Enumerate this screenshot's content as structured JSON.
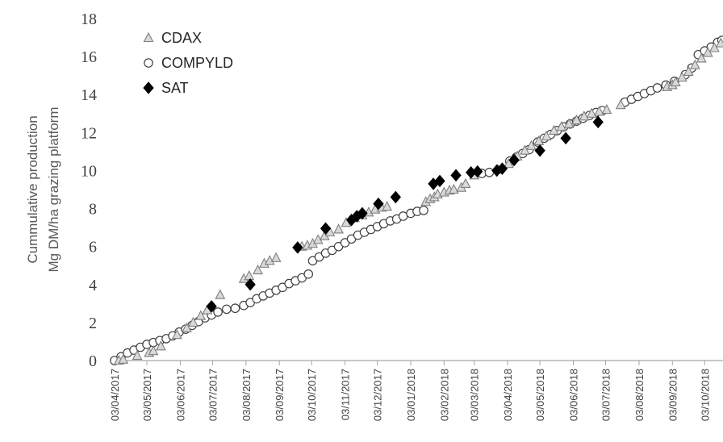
{
  "chart_data": {
    "type": "scatter",
    "ylabel_lines": [
      "Cummulative production",
      "Mg DM/ha grazing platform"
    ],
    "ylim": [
      0,
      18
    ],
    "yticks": [
      0,
      2,
      4,
      6,
      8,
      10,
      12,
      14,
      16,
      18
    ],
    "xlim": [
      "2017-04-03",
      "2018-10-20"
    ],
    "xtick_values": [
      "2017-04-03",
      "2017-05-03",
      "2017-06-03",
      "2017-07-03",
      "2017-08-03",
      "2017-09-03",
      "2017-10-03",
      "2017-11-03",
      "2017-12-03",
      "2018-01-03",
      "2018-02-03",
      "2018-03-03",
      "2018-04-03",
      "2018-05-03",
      "2018-06-03",
      "2018-07-03",
      "2018-08-03",
      "2018-09-03",
      "2018-10-03"
    ],
    "xtick_labels": [
      "03/04/2017",
      "03/05/2017",
      "03/06/2017",
      "03/07/2017",
      "03/08/2017",
      "03/09/2017",
      "03/10/2017",
      "03/11/2017",
      "03/12/2017",
      "03/01/2018",
      "03/02/2018",
      "03/03/2018",
      "03/04/2018",
      "03/05/2018",
      "03/06/2018",
      "03/07/2018",
      "03/08/2018",
      "03/09/2018",
      "03/10/2018"
    ],
    "grid": false,
    "legend_position": "top-left",
    "series": [
      {
        "name": "CDAX",
        "marker": "triangle",
        "color": "#7f7f7f",
        "points": [
          [
            "2017-04-07",
            0.0
          ],
          [
            "2017-04-11",
            0.05
          ],
          [
            "2017-04-24",
            0.25
          ],
          [
            "2017-05-05",
            0.4
          ],
          [
            "2017-05-09",
            0.5
          ],
          [
            "2017-05-16",
            0.75
          ],
          [
            "2017-05-31",
            1.35
          ],
          [
            "2017-06-09",
            1.7
          ],
          [
            "2017-06-15",
            2.0
          ],
          [
            "2017-06-22",
            2.35
          ],
          [
            "2017-06-28",
            2.65
          ],
          [
            "2017-07-10",
            3.45
          ],
          [
            "2017-08-01",
            4.3
          ],
          [
            "2017-08-06",
            4.45
          ],
          [
            "2017-08-14",
            4.75
          ],
          [
            "2017-08-20",
            5.1
          ],
          [
            "2017-08-25",
            5.25
          ],
          [
            "2017-08-31",
            5.4
          ],
          [
            "2017-09-24",
            6.0
          ],
          [
            "2017-09-29",
            6.05
          ],
          [
            "2017-10-04",
            6.15
          ],
          [
            "2017-10-09",
            6.35
          ],
          [
            "2017-10-15",
            6.55
          ],
          [
            "2017-10-20",
            6.75
          ],
          [
            "2017-10-28",
            6.9
          ],
          [
            "2017-11-04",
            7.25
          ],
          [
            "2017-11-12",
            7.5
          ],
          [
            "2017-11-19",
            7.65
          ],
          [
            "2017-11-25",
            7.8
          ],
          [
            "2017-12-01",
            7.95
          ],
          [
            "2017-12-07",
            8.05
          ],
          [
            "2017-12-12",
            8.1
          ],
          [
            "2018-01-17",
            8.35
          ],
          [
            "2018-01-21",
            8.5
          ],
          [
            "2018-01-25",
            8.6
          ],
          [
            "2018-01-28",
            8.75
          ],
          [
            "2018-02-03",
            8.85
          ],
          [
            "2018-02-08",
            8.95
          ],
          [
            "2018-02-12",
            9.0
          ],
          [
            "2018-02-19",
            9.1
          ],
          [
            "2018-02-23",
            9.3
          ],
          [
            "2018-03-03",
            9.75
          ],
          [
            "2018-03-25",
            10.05
          ],
          [
            "2018-04-04",
            10.35
          ],
          [
            "2018-04-12",
            10.75
          ],
          [
            "2018-04-19",
            11.05
          ],
          [
            "2018-04-25",
            11.3
          ],
          [
            "2018-05-02",
            11.55
          ],
          [
            "2018-05-09",
            11.8
          ],
          [
            "2018-05-16",
            12.1
          ],
          [
            "2018-05-23",
            12.3
          ],
          [
            "2018-05-30",
            12.45
          ],
          [
            "2018-06-06",
            12.65
          ],
          [
            "2018-06-13",
            12.85
          ],
          [
            "2018-06-20",
            13.0
          ],
          [
            "2018-06-27",
            13.1
          ],
          [
            "2018-07-04",
            13.2
          ],
          [
            "2018-07-17",
            13.45
          ],
          [
            "2018-08-29",
            14.4
          ],
          [
            "2018-09-03",
            14.5
          ],
          [
            "2018-09-06",
            14.65
          ],
          [
            "2018-09-12",
            14.9
          ],
          [
            "2018-09-18",
            15.2
          ],
          [
            "2018-09-24",
            15.55
          ],
          [
            "2018-09-30",
            15.9
          ],
          [
            "2018-10-06",
            16.2
          ],
          [
            "2018-10-12",
            16.45
          ],
          [
            "2018-10-18",
            16.7
          ]
        ]
      },
      {
        "name": "COMPYLD",
        "marker": "circle",
        "color": "#404040",
        "points": [
          [
            "2017-04-03",
            0.0
          ],
          [
            "2017-04-09",
            0.2
          ],
          [
            "2017-04-15",
            0.4
          ],
          [
            "2017-04-21",
            0.55
          ],
          [
            "2017-04-27",
            0.7
          ],
          [
            "2017-05-03",
            0.85
          ],
          [
            "2017-05-09",
            0.95
          ],
          [
            "2017-05-15",
            1.05
          ],
          [
            "2017-05-21",
            1.15
          ],
          [
            "2017-05-27",
            1.3
          ],
          [
            "2017-06-02",
            1.5
          ],
          [
            "2017-06-08",
            1.65
          ],
          [
            "2017-06-14",
            1.85
          ],
          [
            "2017-06-20",
            2.05
          ],
          [
            "2017-06-26",
            2.25
          ],
          [
            "2017-07-02",
            2.4
          ],
          [
            "2017-07-08",
            2.55
          ],
          [
            "2017-07-16",
            2.7
          ],
          [
            "2017-07-24",
            2.75
          ],
          [
            "2017-08-01",
            2.9
          ],
          [
            "2017-08-07",
            3.05
          ],
          [
            "2017-08-13",
            3.25
          ],
          [
            "2017-08-19",
            3.4
          ],
          [
            "2017-08-25",
            3.55
          ],
          [
            "2017-08-31",
            3.7
          ],
          [
            "2017-09-06",
            3.85
          ],
          [
            "2017-09-12",
            4.05
          ],
          [
            "2017-09-18",
            4.2
          ],
          [
            "2017-09-24",
            4.35
          ],
          [
            "2017-09-30",
            4.55
          ],
          [
            "2017-10-04",
            5.25
          ],
          [
            "2017-10-10",
            5.45
          ],
          [
            "2017-10-16",
            5.65
          ],
          [
            "2017-10-22",
            5.8
          ],
          [
            "2017-10-28",
            6.0
          ],
          [
            "2017-11-03",
            6.2
          ],
          [
            "2017-11-09",
            6.4
          ],
          [
            "2017-11-15",
            6.6
          ],
          [
            "2017-11-21",
            6.75
          ],
          [
            "2017-11-27",
            6.9
          ],
          [
            "2017-12-03",
            7.05
          ],
          [
            "2017-12-09",
            7.2
          ],
          [
            "2017-12-15",
            7.35
          ],
          [
            "2017-12-21",
            7.45
          ],
          [
            "2017-12-27",
            7.6
          ],
          [
            "2018-01-03",
            7.75
          ],
          [
            "2018-01-09",
            7.85
          ],
          [
            "2018-01-15",
            7.9
          ],
          [
            "2018-03-10",
            9.85
          ],
          [
            "2018-03-17",
            9.9
          ],
          [
            "2018-04-05",
            10.5
          ],
          [
            "2018-04-11",
            10.7
          ],
          [
            "2018-04-17",
            10.9
          ],
          [
            "2018-04-23",
            11.1
          ],
          [
            "2018-05-01",
            11.5
          ],
          [
            "2018-05-07",
            11.7
          ],
          [
            "2018-05-13",
            11.9
          ],
          [
            "2018-05-19",
            12.1
          ],
          [
            "2018-05-25",
            12.3
          ],
          [
            "2018-05-31",
            12.45
          ],
          [
            "2018-06-06",
            12.6
          ],
          [
            "2018-06-12",
            12.75
          ],
          [
            "2018-06-18",
            12.9
          ],
          [
            "2018-06-24",
            13.05
          ],
          [
            "2018-06-30",
            13.15
          ],
          [
            "2018-07-21",
            13.6
          ],
          [
            "2018-07-27",
            13.75
          ],
          [
            "2018-08-02",
            13.9
          ],
          [
            "2018-08-08",
            14.05
          ],
          [
            "2018-08-14",
            14.2
          ],
          [
            "2018-08-20",
            14.35
          ],
          [
            "2018-08-28",
            14.5
          ],
          [
            "2018-09-05",
            14.7
          ],
          [
            "2018-09-15",
            15.05
          ],
          [
            "2018-09-21",
            15.4
          ],
          [
            "2018-09-27",
            16.1
          ],
          [
            "2018-10-03",
            16.3
          ],
          [
            "2018-10-09",
            16.5
          ],
          [
            "2018-10-15",
            16.75
          ],
          [
            "2018-10-19",
            16.85
          ]
        ]
      },
      {
        "name": "SAT",
        "marker": "diamond",
        "color": "#000000",
        "points": [
          [
            "2017-07-02",
            2.85
          ],
          [
            "2017-08-07",
            4.0
          ],
          [
            "2017-09-20",
            5.95
          ],
          [
            "2017-10-16",
            6.95
          ],
          [
            "2017-11-09",
            7.4
          ],
          [
            "2017-11-14",
            7.6
          ],
          [
            "2017-11-19",
            7.75
          ],
          [
            "2017-12-04",
            8.25
          ],
          [
            "2017-12-20",
            8.6
          ],
          [
            "2018-01-24",
            9.3
          ],
          [
            "2018-01-30",
            9.45
          ],
          [
            "2018-02-14",
            9.75
          ],
          [
            "2018-02-28",
            9.9
          ],
          [
            "2018-03-06",
            9.95
          ],
          [
            "2018-03-24",
            10.0
          ],
          [
            "2018-03-29",
            10.1
          ],
          [
            "2018-04-09",
            10.55
          ],
          [
            "2018-05-03",
            11.05
          ],
          [
            "2018-05-27",
            11.7
          ],
          [
            "2018-06-26",
            12.55
          ]
        ]
      }
    ]
  }
}
